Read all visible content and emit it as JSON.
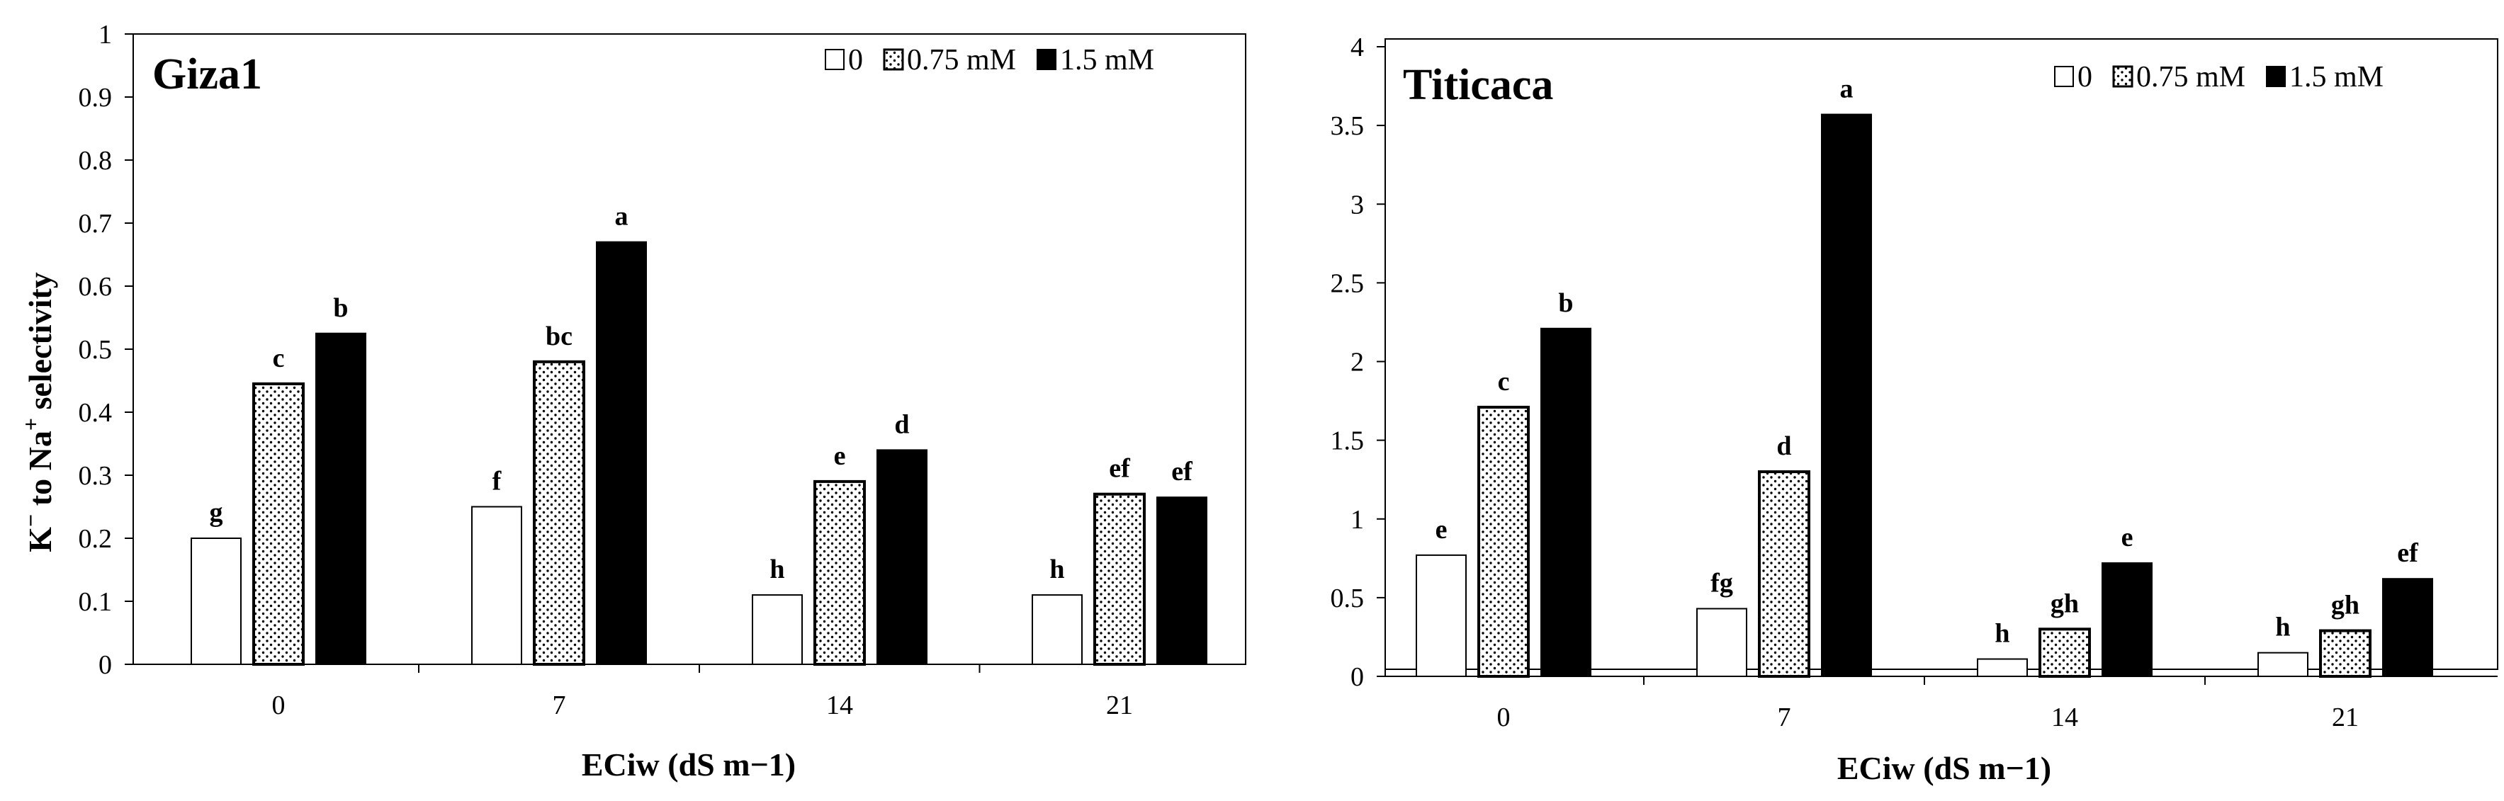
{
  "chart_data": [
    {
      "type": "bar",
      "title": "Giza1",
      "xlabel": "ECiw (dS m−1)",
      "ylabel_main": "K",
      "ylabel_sup1": "−",
      "ylabel_mid": " to Na",
      "ylabel_sup2": "+",
      "ylabel_end": " selectivity",
      "categories": [
        "0",
        "7",
        "14",
        "21"
      ],
      "ylim": [
        0,
        1
      ],
      "yticks": [
        "0",
        "0.1",
        "0.2",
        "0.3",
        "0.4",
        "0.5",
        "0.6",
        "0.7",
        "0.8",
        "0.9",
        "1"
      ],
      "series": [
        {
          "name": "0",
          "pattern": "white",
          "values": [
            0.2,
            0.25,
            0.11,
            0.11
          ],
          "letters": [
            "g",
            "f",
            "h",
            "h"
          ]
        },
        {
          "name": "0.75 mM",
          "pattern": "dots",
          "values": [
            0.445,
            0.48,
            0.29,
            0.27
          ],
          "letters": [
            "c",
            "bc",
            "e",
            "ef"
          ]
        },
        {
          "name": "1.5 mM",
          "pattern": "black",
          "values": [
            0.525,
            0.67,
            0.34,
            0.265
          ],
          "letters": [
            "b",
            "a",
            "d",
            "ef"
          ]
        }
      ],
      "legend": "top-right",
      "grid": false
    },
    {
      "type": "bar",
      "title": "Titicaca",
      "xlabel": "ECiw (dS m−1)",
      "categories": [
        "0",
        "7",
        "14",
        "21"
      ],
      "ylim": [
        0,
        4
      ],
      "yticks": [
        "0",
        "0.5",
        "1",
        "1.5",
        "2",
        "2.5",
        "3",
        "3.5",
        "4"
      ],
      "series": [
        {
          "name": "0",
          "pattern": "white",
          "values": [
            0.77,
            0.43,
            0.11,
            0.15
          ],
          "letters": [
            "e",
            "fg",
            "h",
            "h"
          ]
        },
        {
          "name": "0.75 mM",
          "pattern": "dots",
          "values": [
            1.71,
            1.3,
            0.3,
            0.29
          ],
          "letters": [
            "c",
            "d",
            "gh",
            "gh"
          ]
        },
        {
          "name": "1.5 mM",
          "pattern": "black",
          "values": [
            2.21,
            3.57,
            0.72,
            0.62
          ],
          "letters": [
            "b",
            "a",
            "e",
            "ef"
          ]
        }
      ],
      "legend": "top-right",
      "grid": false
    }
  ]
}
